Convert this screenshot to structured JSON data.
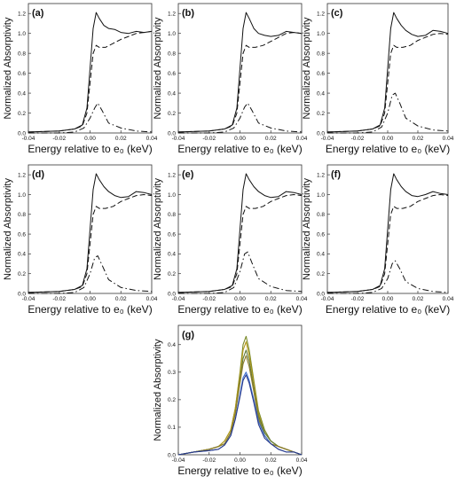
{
  "chart_data": [
    {
      "panel": "(a)",
      "type": "line",
      "xlabel": "Energy relative to e₀ (keV)",
      "ylabel": "Normalized Absorptivity",
      "xlim": [
        -0.04,
        0.04
      ],
      "ylim": [
        0,
        1.3
      ],
      "xticks": [
        "-0.04",
        "-0.02",
        "0.00",
        "0.02",
        "0.04"
      ],
      "yticks": [
        "0.0",
        "0.2",
        "0.4",
        "0.6",
        "0.8",
        "1.0",
        "1.2"
      ],
      "series": [
        {
          "style": "solid",
          "x": [
            -0.04,
            -0.02,
            -0.01,
            -0.005,
            -0.002,
            0,
            0.002,
            0.004,
            0.006,
            0.009,
            0.012,
            0.016,
            0.02,
            0.025,
            0.03,
            0.035,
            0.04
          ],
          "y": [
            0.01,
            0.02,
            0.04,
            0.08,
            0.25,
            0.65,
            1.05,
            1.21,
            1.15,
            1.08,
            1.05,
            1.04,
            1.01,
            1.0,
            1.02,
            1.01,
            1.02
          ]
        },
        {
          "style": "dashed",
          "x": [
            -0.04,
            -0.02,
            -0.01,
            -0.005,
            -0.002,
            0,
            0.002,
            0.004,
            0.006,
            0.01,
            0.015,
            0.02,
            0.025,
            0.03,
            0.035,
            0.04
          ],
          "y": [
            0.01,
            0.02,
            0.04,
            0.07,
            0.2,
            0.5,
            0.8,
            0.88,
            0.86,
            0.86,
            0.9,
            0.94,
            0.97,
            1.0,
            1.01,
            1.02
          ]
        },
        {
          "style": "dashdot",
          "x": [
            -0.04,
            -0.02,
            -0.01,
            -0.004,
            0,
            0.003,
            0.005,
            0.008,
            0.012,
            0.02,
            0.03,
            0.04
          ],
          "y": [
            0.0,
            0.0,
            0.01,
            0.05,
            0.15,
            0.25,
            0.3,
            0.22,
            0.1,
            0.05,
            0.02,
            0.01
          ]
        }
      ]
    },
    {
      "panel": "(b)",
      "type": "line",
      "xlabel": "Energy relative to e₀ (keV)",
      "ylabel": "Normalized Absorptivity",
      "xlim": [
        -0.04,
        0.04
      ],
      "ylim": [
        0,
        1.3
      ],
      "xticks": [
        "-0.04",
        "-0.02",
        "0.00",
        "0.02",
        "0.04"
      ],
      "yticks": [
        "0.0",
        "0.2",
        "0.4",
        "0.6",
        "0.8",
        "1.0",
        "1.2"
      ],
      "series": [
        {
          "style": "solid",
          "x": [
            -0.04,
            -0.02,
            -0.01,
            -0.005,
            -0.002,
            0,
            0.002,
            0.004,
            0.006,
            0.009,
            0.012,
            0.016,
            0.02,
            0.025,
            0.03,
            0.035,
            0.04
          ],
          "y": [
            0.01,
            0.02,
            0.04,
            0.08,
            0.25,
            0.65,
            1.05,
            1.21,
            1.15,
            1.05,
            1.0,
            0.98,
            0.97,
            0.98,
            1.02,
            1.01,
            1.0
          ]
        },
        {
          "style": "dashed",
          "x": [
            -0.04,
            -0.02,
            -0.01,
            -0.005,
            -0.002,
            0,
            0.002,
            0.004,
            0.006,
            0.01,
            0.015,
            0.02,
            0.025,
            0.03,
            0.035,
            0.04
          ],
          "y": [
            0.01,
            0.02,
            0.04,
            0.07,
            0.2,
            0.5,
            0.8,
            0.88,
            0.86,
            0.86,
            0.88,
            0.92,
            0.96,
            1.0,
            1.01,
            1.0
          ]
        },
        {
          "style": "dashdot",
          "x": [
            -0.04,
            -0.02,
            -0.01,
            -0.004,
            0,
            0.003,
            0.005,
            0.008,
            0.012,
            0.02,
            0.03,
            0.04
          ],
          "y": [
            0.0,
            0.0,
            0.01,
            0.05,
            0.15,
            0.26,
            0.3,
            0.22,
            0.1,
            0.05,
            0.02,
            0.01
          ]
        }
      ]
    },
    {
      "panel": "(c)",
      "type": "line",
      "xlabel": "Energy relative to e₀ (keV)",
      "ylabel": "Normalized Absorptivity",
      "xlim": [
        -0.04,
        0.04
      ],
      "ylim": [
        0,
        1.3
      ],
      "xticks": [
        "-0.04",
        "-0.02",
        "0.00",
        "0.02",
        "0.04"
      ],
      "yticks": [
        "0.0",
        "0.2",
        "0.4",
        "0.6",
        "0.8",
        "1.0",
        "1.2"
      ],
      "series": [
        {
          "style": "solid",
          "x": [
            -0.04,
            -0.02,
            -0.01,
            -0.005,
            -0.002,
            0,
            0.002,
            0.004,
            0.006,
            0.009,
            0.012,
            0.016,
            0.02,
            0.025,
            0.03,
            0.035,
            0.04
          ],
          "y": [
            0.01,
            0.02,
            0.04,
            0.08,
            0.25,
            0.65,
            1.05,
            1.21,
            1.15,
            1.08,
            1.03,
            0.99,
            0.97,
            0.98,
            1.03,
            1.02,
            1.0
          ]
        },
        {
          "style": "dashed",
          "x": [
            -0.04,
            -0.02,
            -0.01,
            -0.005,
            -0.002,
            0,
            0.002,
            0.004,
            0.006,
            0.01,
            0.015,
            0.02,
            0.025,
            0.03,
            0.035,
            0.04
          ],
          "y": [
            0.01,
            0.02,
            0.04,
            0.07,
            0.2,
            0.5,
            0.8,
            0.88,
            0.86,
            0.86,
            0.88,
            0.93,
            0.96,
            0.99,
            1.0,
            0.99
          ]
        },
        {
          "style": "dashdot",
          "x": [
            -0.04,
            -0.02,
            -0.01,
            -0.004,
            0,
            0.003,
            0.005,
            0.008,
            0.012,
            0.02,
            0.03,
            0.04
          ],
          "y": [
            0.0,
            0.0,
            0.01,
            0.06,
            0.2,
            0.38,
            0.4,
            0.3,
            0.15,
            0.07,
            0.03,
            0.02
          ]
        }
      ]
    },
    {
      "panel": "(d)",
      "type": "line",
      "xlabel": "Energy relative to e₀ (keV)",
      "ylabel": "Normalized Absorptivity",
      "xlim": [
        -0.04,
        0.04
      ],
      "ylim": [
        0,
        1.3
      ],
      "xticks": [
        "-0.04",
        "-0.02",
        "0.00",
        "0.02",
        "0.04"
      ],
      "yticks": [
        "0.0",
        "0.2",
        "0.4",
        "0.6",
        "0.8",
        "1.0",
        "1.2"
      ],
      "series": [
        {
          "style": "solid",
          "x": [
            -0.04,
            -0.02,
            -0.01,
            -0.005,
            -0.002,
            0,
            0.002,
            0.004,
            0.006,
            0.009,
            0.012,
            0.016,
            0.02,
            0.025,
            0.03,
            0.035,
            0.04
          ],
          "y": [
            0.01,
            0.02,
            0.04,
            0.08,
            0.25,
            0.65,
            1.05,
            1.21,
            1.15,
            1.08,
            1.03,
            0.99,
            0.97,
            0.98,
            1.03,
            1.02,
            1.0
          ]
        },
        {
          "style": "dashed",
          "x": [
            -0.04,
            -0.02,
            -0.01,
            -0.005,
            -0.002,
            0,
            0.002,
            0.004,
            0.006,
            0.01,
            0.015,
            0.02,
            0.025,
            0.03,
            0.035,
            0.04
          ],
          "y": [
            0.01,
            0.02,
            0.04,
            0.07,
            0.2,
            0.5,
            0.8,
            0.88,
            0.86,
            0.86,
            0.88,
            0.93,
            0.96,
            0.99,
            1.0,
            0.99
          ]
        },
        {
          "style": "dashdot",
          "x": [
            -0.04,
            -0.02,
            -0.01,
            -0.004,
            0,
            0.003,
            0.005,
            0.008,
            0.012,
            0.02,
            0.03,
            0.04
          ],
          "y": [
            0.0,
            0.0,
            0.01,
            0.06,
            0.2,
            0.36,
            0.38,
            0.28,
            0.14,
            0.06,
            0.03,
            0.02
          ]
        }
      ]
    },
    {
      "panel": "(e)",
      "type": "line",
      "xlabel": "Energy relative to e₀ (keV)",
      "ylabel": "Normalized Absorptivity",
      "xlim": [
        -0.04,
        0.04
      ],
      "ylim": [
        0,
        1.3
      ],
      "xticks": [
        "-0.04",
        "-0.02",
        "0.00",
        "0.02",
        "0.04"
      ],
      "yticks": [
        "0.0",
        "0.2",
        "0.4",
        "0.6",
        "0.8",
        "1.0",
        "1.2"
      ],
      "series": [
        {
          "style": "solid",
          "x": [
            -0.04,
            -0.02,
            -0.01,
            -0.005,
            -0.002,
            0,
            0.002,
            0.004,
            0.006,
            0.009,
            0.012,
            0.016,
            0.02,
            0.025,
            0.03,
            0.035,
            0.04
          ],
          "y": [
            0.01,
            0.02,
            0.04,
            0.08,
            0.25,
            0.65,
            1.05,
            1.21,
            1.15,
            1.08,
            1.03,
            0.99,
            0.97,
            0.98,
            1.03,
            1.02,
            1.0
          ]
        },
        {
          "style": "dashed",
          "x": [
            -0.04,
            -0.02,
            -0.01,
            -0.005,
            -0.002,
            0,
            0.002,
            0.004,
            0.006,
            0.01,
            0.015,
            0.02,
            0.025,
            0.03,
            0.035,
            0.04
          ],
          "y": [
            0.01,
            0.02,
            0.04,
            0.07,
            0.2,
            0.5,
            0.8,
            0.88,
            0.86,
            0.86,
            0.88,
            0.93,
            0.96,
            0.99,
            1.0,
            0.99
          ]
        },
        {
          "style": "dashdot",
          "x": [
            -0.04,
            -0.02,
            -0.01,
            -0.004,
            0,
            0.003,
            0.005,
            0.008,
            0.012,
            0.02,
            0.03,
            0.04
          ],
          "y": [
            0.0,
            0.0,
            0.01,
            0.06,
            0.22,
            0.4,
            0.42,
            0.3,
            0.15,
            0.07,
            0.03,
            0.02
          ]
        }
      ]
    },
    {
      "panel": "(f)",
      "type": "line",
      "xlabel": "Energy relative to e₀ (keV)",
      "ylabel": "Normalized Absorptivity",
      "xlim": [
        -0.04,
        0.04
      ],
      "ylim": [
        0,
        1.3
      ],
      "xticks": [
        "-0.04",
        "-0.02",
        "0.00",
        "0.02",
        "0.04"
      ],
      "yticks": [
        "0.0",
        "0.2",
        "0.4",
        "0.6",
        "0.8",
        "1.0",
        "1.2"
      ],
      "series": [
        {
          "style": "solid",
          "x": [
            -0.04,
            -0.02,
            -0.01,
            -0.005,
            -0.002,
            0,
            0.002,
            0.004,
            0.006,
            0.009,
            0.012,
            0.016,
            0.02,
            0.025,
            0.03,
            0.035,
            0.04
          ],
          "y": [
            0.01,
            0.02,
            0.04,
            0.08,
            0.25,
            0.65,
            1.05,
            1.21,
            1.15,
            1.08,
            1.03,
            0.99,
            0.98,
            1.0,
            1.03,
            1.01,
            1.0
          ]
        },
        {
          "style": "dashed",
          "x": [
            -0.04,
            -0.02,
            -0.01,
            -0.005,
            -0.002,
            0,
            0.002,
            0.004,
            0.006,
            0.01,
            0.015,
            0.02,
            0.025,
            0.03,
            0.035,
            0.04
          ],
          "y": [
            0.01,
            0.02,
            0.04,
            0.07,
            0.2,
            0.5,
            0.8,
            0.88,
            0.86,
            0.86,
            0.88,
            0.93,
            0.96,
            0.99,
            1.0,
            0.99
          ]
        },
        {
          "style": "dashdot",
          "x": [
            -0.04,
            -0.02,
            -0.01,
            -0.004,
            0,
            0.003,
            0.005,
            0.008,
            0.012,
            0.02,
            0.03,
            0.04
          ],
          "y": [
            0.0,
            0.0,
            0.01,
            0.05,
            0.15,
            0.3,
            0.33,
            0.25,
            0.12,
            0.05,
            0.02,
            0.01
          ]
        }
      ]
    },
    {
      "panel": "(g)",
      "type": "line",
      "xlabel": "Energy relative to e₀ (keV)",
      "ylabel": "Normalized Absorptivity",
      "xlim": [
        -0.04,
        0.04
      ],
      "ylim": [
        0,
        0.47
      ],
      "xticks": [
        "-0.04",
        "-0.02",
        "0.00",
        "0.02",
        "0.04"
      ],
      "yticks": [
        "0.0",
        "0.1",
        "0.2",
        "0.3",
        "0.4"
      ],
      "x": [
        -0.04,
        -0.03,
        -0.02,
        -0.014,
        -0.01,
        -0.006,
        -0.003,
        0,
        0.002,
        0.004,
        0.006,
        0.009,
        0.012,
        0.016,
        0.02,
        0.025,
        0.03,
        0.035,
        0.04
      ],
      "series": [
        {
          "color": "#7a8a2a",
          "peak": 0.43,
          "y": [
            0.0,
            0.01,
            0.02,
            0.03,
            0.05,
            0.09,
            0.17,
            0.3,
            0.4,
            0.43,
            0.38,
            0.27,
            0.16,
            0.09,
            0.05,
            0.03,
            0.02,
            0.01,
            0.0
          ]
        },
        {
          "color": "#b59a1a",
          "peak": 0.41,
          "y": [
            0.0,
            0.01,
            0.02,
            0.03,
            0.05,
            0.09,
            0.17,
            0.29,
            0.38,
            0.41,
            0.36,
            0.26,
            0.15,
            0.08,
            0.05,
            0.03,
            0.02,
            0.01,
            0.0
          ]
        },
        {
          "color": "#5f7a3a",
          "peak": 0.38,
          "y": [
            0.0,
            0.01,
            0.02,
            0.03,
            0.04,
            0.08,
            0.15,
            0.27,
            0.35,
            0.38,
            0.34,
            0.24,
            0.14,
            0.08,
            0.05,
            0.03,
            0.02,
            0.01,
            0.0
          ]
        },
        {
          "color": "#8c7a2a",
          "peak": 0.36,
          "y": [
            0.0,
            0.01,
            0.02,
            0.03,
            0.04,
            0.08,
            0.15,
            0.26,
            0.33,
            0.36,
            0.32,
            0.23,
            0.13,
            0.07,
            0.04,
            0.03,
            0.02,
            0.01,
            0.0
          ]
        },
        {
          "color": "#3a6fd0",
          "peak": 0.3,
          "y": [
            0.0,
            0.01,
            0.015,
            0.02,
            0.035,
            0.07,
            0.13,
            0.22,
            0.28,
            0.3,
            0.27,
            0.2,
            0.12,
            0.07,
            0.04,
            0.02,
            0.01,
            0.01,
            0.0
          ]
        },
        {
          "color": "#2a3a8a",
          "peak": 0.29,
          "y": [
            0.0,
            0.01,
            0.015,
            0.02,
            0.035,
            0.07,
            0.13,
            0.21,
            0.27,
            0.29,
            0.26,
            0.19,
            0.11,
            0.06,
            0.04,
            0.02,
            0.01,
            0.01,
            0.0
          ]
        }
      ]
    }
  ]
}
